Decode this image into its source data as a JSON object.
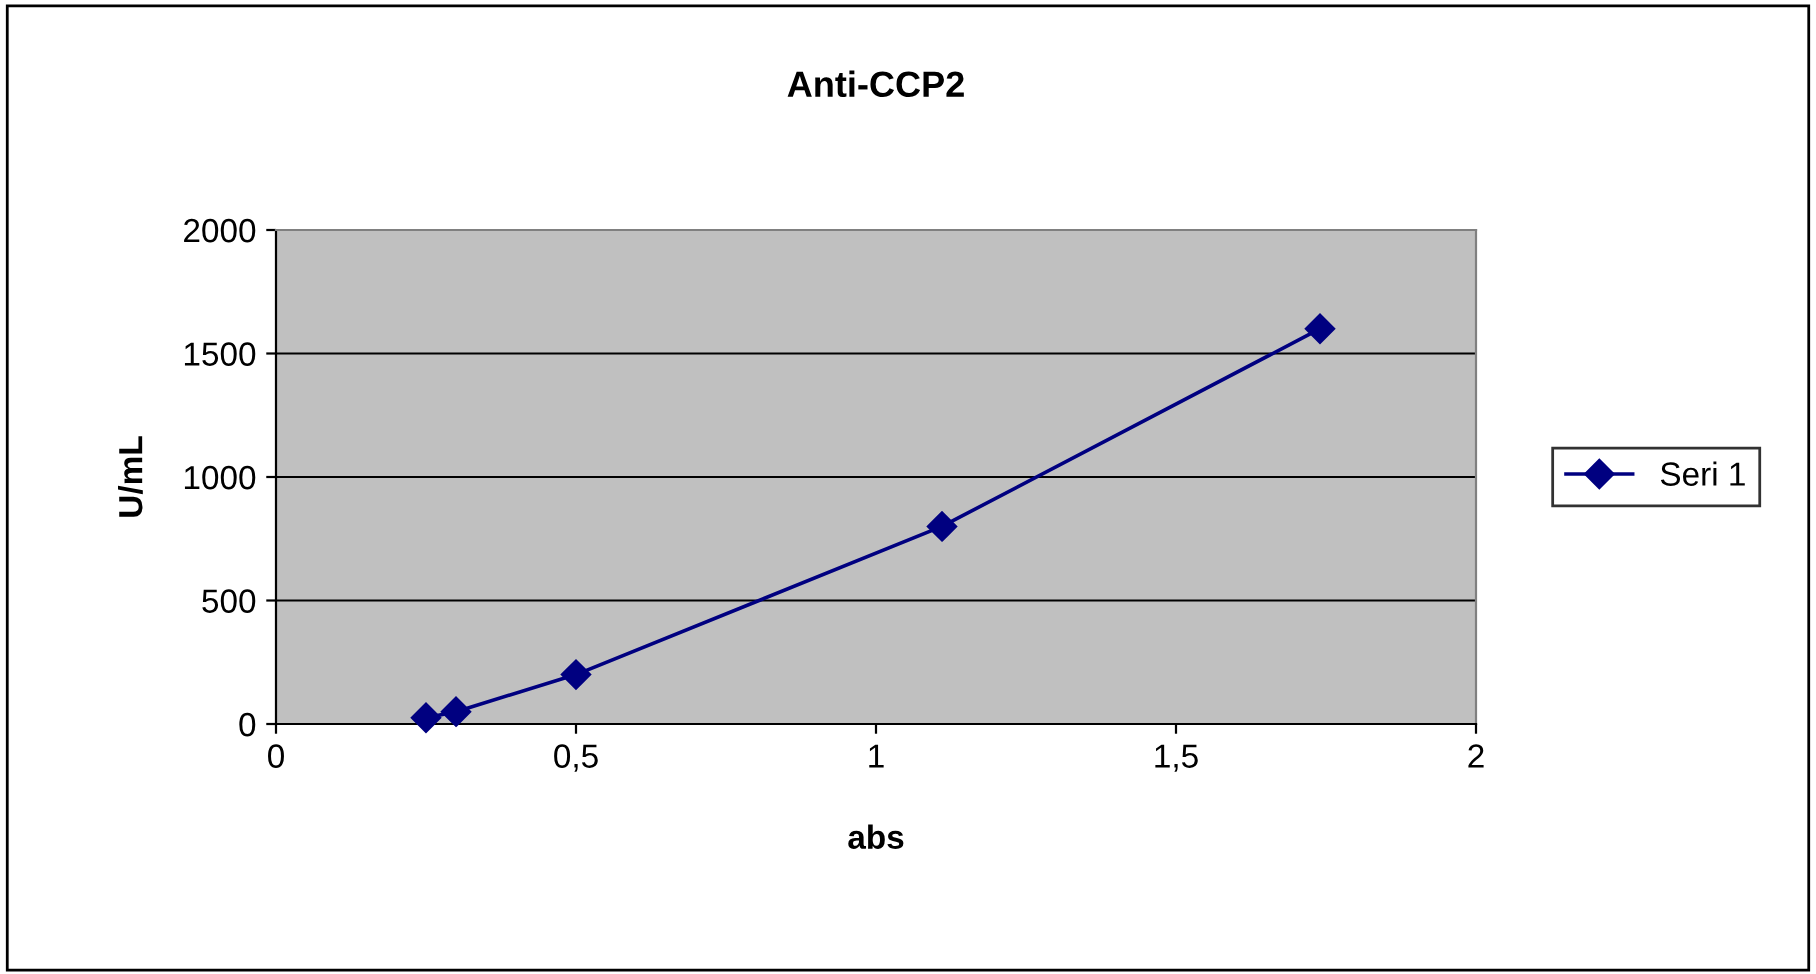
{
  "chart_data": {
    "type": "line",
    "title": "Anti-CCP2",
    "xlabel": "abs",
    "ylabel": "U/mL",
    "series": [
      {
        "name": "Seri 1",
        "color": "#000080",
        "x": [
          0.25,
          0.3,
          0.5,
          1.11,
          1.74
        ],
        "values": [
          25,
          50,
          200,
          800,
          1600
        ]
      }
    ],
    "xlim": [
      0,
      2
    ],
    "xticks": [
      0,
      {
        "value": 0.5,
        "label": "0,5"
      },
      1,
      {
        "value": 1.5,
        "label": "1,5"
      },
      2
    ],
    "ylim": [
      0,
      2000
    ],
    "yticks": [
      0,
      500,
      1000,
      1500,
      2000
    ],
    "grid": "y",
    "legend": "right",
    "marker": "diamond",
    "line_style": "solid"
  }
}
